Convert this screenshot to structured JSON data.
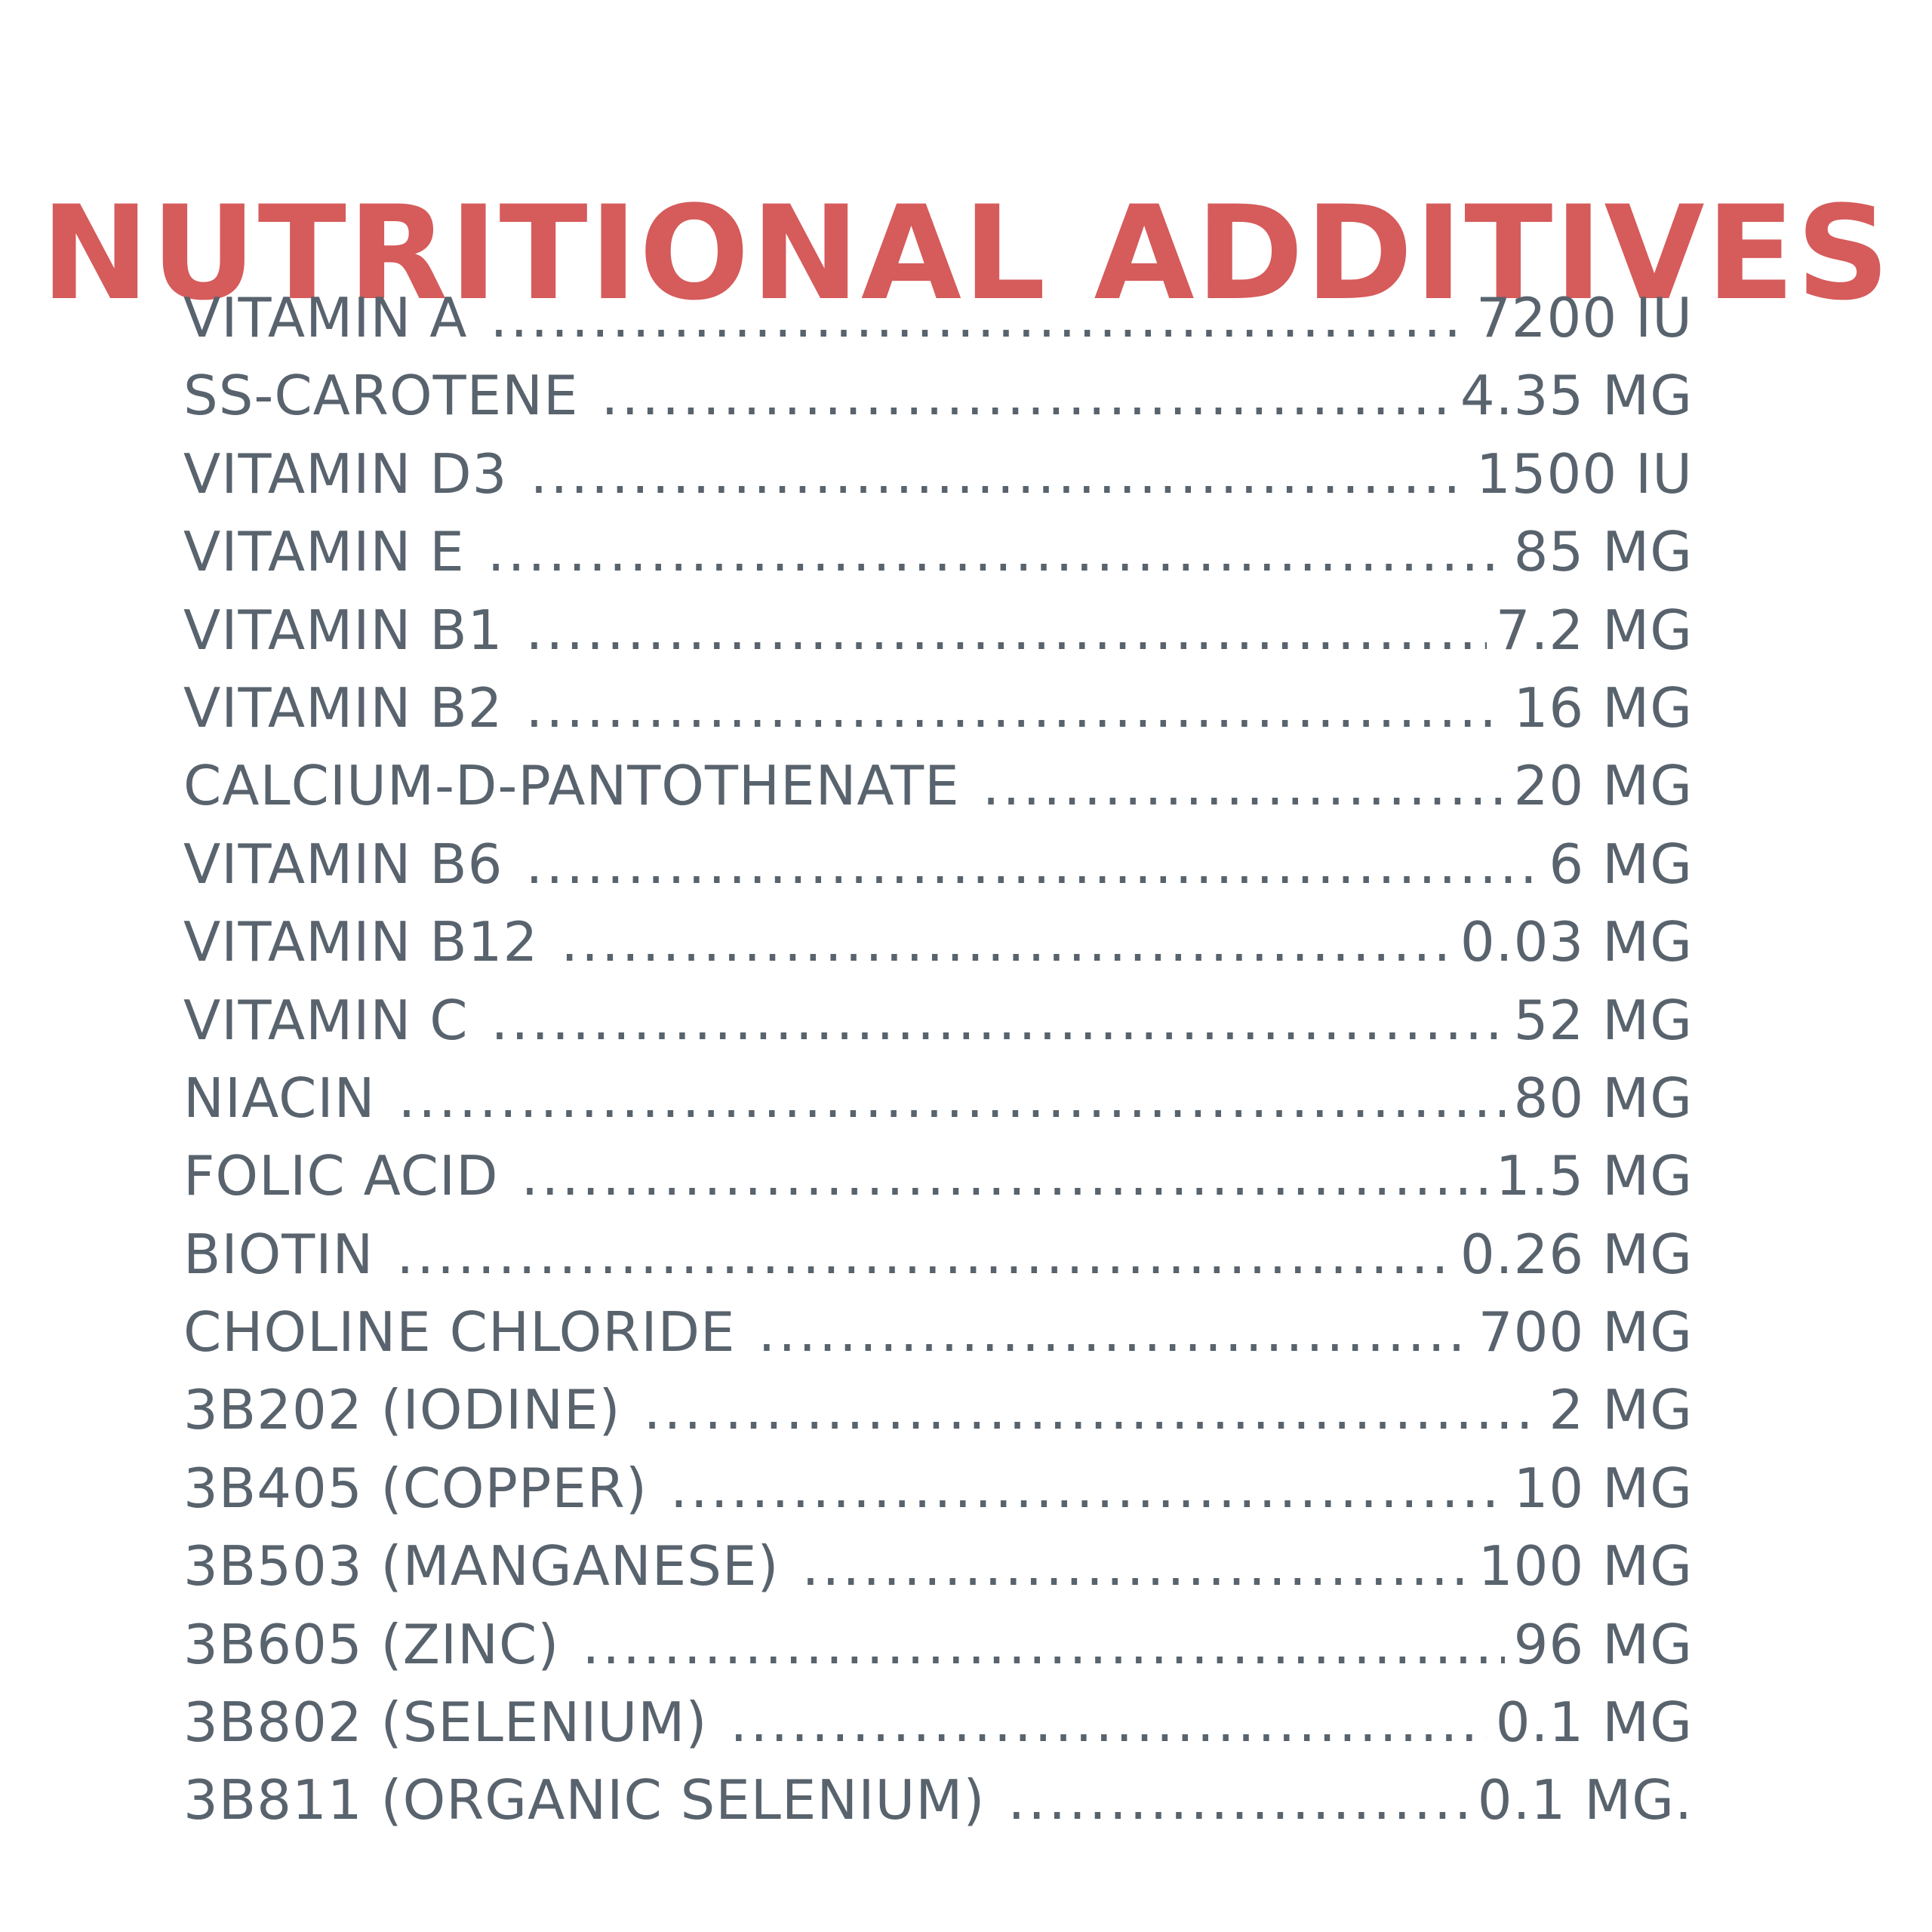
{
  "title": "NUTRITIONAL ADDITIVES",
  "colors": {
    "title": "#d65b5b",
    "text": "#58636d",
    "background": "#ffffff"
  },
  "items": [
    {
      "name": "VITAMIN A",
      "amount": "7200 IU"
    },
    {
      "name": "SS-CAROTENE",
      "amount": "4.35 MG"
    },
    {
      "name": "VITAMIN D3",
      "amount": "1500 IU"
    },
    {
      "name": "VITAMIN E",
      "amount": "85 MG"
    },
    {
      "name": "VITAMIN B1",
      "amount": "7.2 MG"
    },
    {
      "name": "VITAMIN B2",
      "amount": "16 MG"
    },
    {
      "name": "CALCIUM-D-PANTOTHENATE",
      "amount": "20 MG"
    },
    {
      "name": "VITAMIN B6",
      "amount": "6 MG"
    },
    {
      "name": "VITAMIN B12",
      "amount": "0.03 MG"
    },
    {
      "name": "VITAMIN C",
      "amount": "52 MG"
    },
    {
      "name": "NIACIN",
      "amount": "80 MG"
    },
    {
      "name": "FOLIC ACID",
      "amount": "1.5 MG"
    },
    {
      "name": "BIOTIN",
      "amount": "0.26 MG"
    },
    {
      "name": "CHOLINE CHLORIDE",
      "amount": "700 MG"
    },
    {
      "name": "3B202 (IODINE)",
      "amount": "2 MG"
    },
    {
      "name": "3B405 (COPPER)",
      "amount": "10 MG"
    },
    {
      "name": "3B503 (MANGANESE)",
      "amount": "100 MG"
    },
    {
      "name": "3B605 (ZINC)",
      "amount": "96 MG"
    },
    {
      "name": "3B802 (SELENIUM)",
      "amount": "0.1 MG"
    },
    {
      "name": "3B811 (ORGANIC SELENIUM)",
      "amount": "0.1 MG."
    }
  ]
}
